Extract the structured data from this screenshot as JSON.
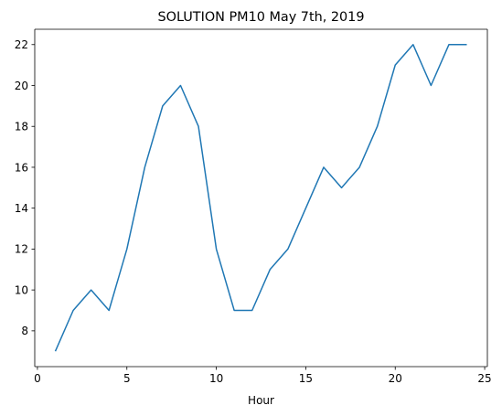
{
  "chart_data": {
    "type": "line",
    "title": "SOLUTION PM10 May 7th, 2019",
    "xlabel": "Hour",
    "ylabel": "",
    "xlim": [
      -0.15,
      25.15
    ],
    "ylim": [
      6.25,
      22.75
    ],
    "xticks": [
      0,
      5,
      10,
      15,
      20,
      25
    ],
    "yticks": [
      8,
      10,
      12,
      14,
      16,
      18,
      20,
      22
    ],
    "grid": false,
    "series": [
      {
        "color": "#1f77b4",
        "x": [
          1,
          2,
          3,
          4,
          5,
          6,
          7,
          8,
          9,
          10,
          11,
          12,
          13,
          14,
          15,
          16,
          17,
          18,
          19,
          20,
          21,
          22,
          23,
          24
        ],
        "y": [
          7,
          9,
          10,
          9,
          12,
          16,
          19,
          20,
          18,
          12,
          9,
          9,
          11,
          12,
          14,
          16,
          15,
          16,
          18,
          21,
          22,
          20,
          22,
          22
        ]
      }
    ]
  }
}
